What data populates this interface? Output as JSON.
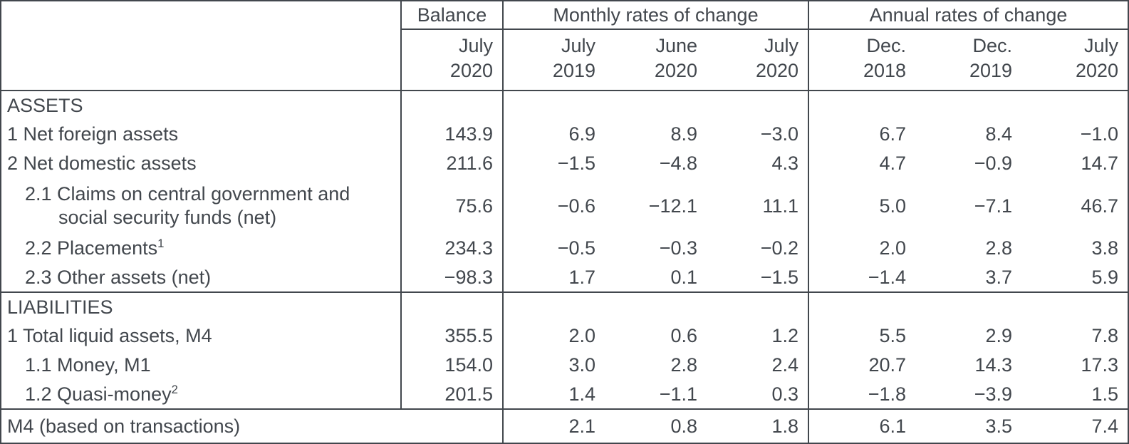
{
  "header": {
    "balance_group": "Balance",
    "monthly_group": "Monthly rates of change",
    "annual_group": "Annual rates of change",
    "sub": [
      {
        "line1": "July",
        "line2": "2020"
      },
      {
        "line1": "July",
        "line2": "2019"
      },
      {
        "line1": "June",
        "line2": "2020"
      },
      {
        "line1": "July",
        "line2": "2020"
      },
      {
        "line1": "Dec.",
        "line2": "2018"
      },
      {
        "line1": "Dec.",
        "line2": "2019"
      },
      {
        "line1": "July",
        "line2": "2020"
      }
    ]
  },
  "rows": [
    {
      "type": "section",
      "label": "ASSETS",
      "values": [
        "",
        "",
        "",
        "",
        "",
        "",
        ""
      ]
    },
    {
      "type": "data",
      "indent": 0,
      "label": "1 Net foreign assets",
      "values": [
        "143.9",
        "6.9",
        "8.9",
        "−3.0",
        "6.7",
        "8.4",
        "−1.0"
      ]
    },
    {
      "type": "data",
      "indent": 0,
      "label": "2 Net domestic assets",
      "values": [
        "211.6",
        "−1.5",
        "−4.8",
        "4.3",
        "4.7",
        "−0.9",
        "14.7"
      ]
    },
    {
      "type": "data",
      "indent": 1,
      "tall": true,
      "label_lines": [
        "2.1 Claims on central government and",
        "social security funds (net)"
      ],
      "label": "2.1 Claims on central government and social security funds (net)",
      "values": [
        "75.6",
        "−0.6",
        "−12.1",
        "11.1",
        "5.0",
        "−7.1",
        "46.7"
      ]
    },
    {
      "type": "data",
      "indent": 1,
      "label": "2.2 Placements",
      "sup": "1",
      "values": [
        "234.3",
        "−0.5",
        "−0.3",
        "−0.2",
        "2.0",
        "2.8",
        "3.8"
      ]
    },
    {
      "type": "data",
      "indent": 1,
      "label": "2.3 Other assets (net)",
      "values": [
        "−98.3",
        "1.7",
        "0.1",
        "−1.5",
        "−1.4",
        "3.7",
        "5.9"
      ]
    },
    {
      "type": "section",
      "section_border": true,
      "label": "LIABILITIES",
      "values": [
        "",
        "",
        "",
        "",
        "",
        "",
        ""
      ]
    },
    {
      "type": "data",
      "indent": 0,
      "label": "1 Total liquid assets, M4",
      "values": [
        "355.5",
        "2.0",
        "0.6",
        "1.2",
        "5.5",
        "2.9",
        "7.8"
      ]
    },
    {
      "type": "data",
      "indent": 1,
      "label": "1.1 Money, M1",
      "values": [
        "154.0",
        "3.0",
        "2.8",
        "2.4",
        "20.7",
        "14.3",
        "17.3"
      ]
    },
    {
      "type": "data",
      "indent": 1,
      "label": "1.2 Quasi-money",
      "sup": "2",
      "values": [
        "201.5",
        "1.4",
        "−1.1",
        "0.3",
        "−1.8",
        "−3.9",
        "1.5"
      ]
    },
    {
      "type": "footer",
      "label": "M4 (based on transactions)",
      "values": [
        "",
        "2.1",
        "0.8",
        "1.8",
        "6.1",
        "3.5",
        "7.4"
      ]
    }
  ],
  "colors": {
    "text": "#42474d",
    "border": "#42474d",
    "background": "#ffffff"
  }
}
